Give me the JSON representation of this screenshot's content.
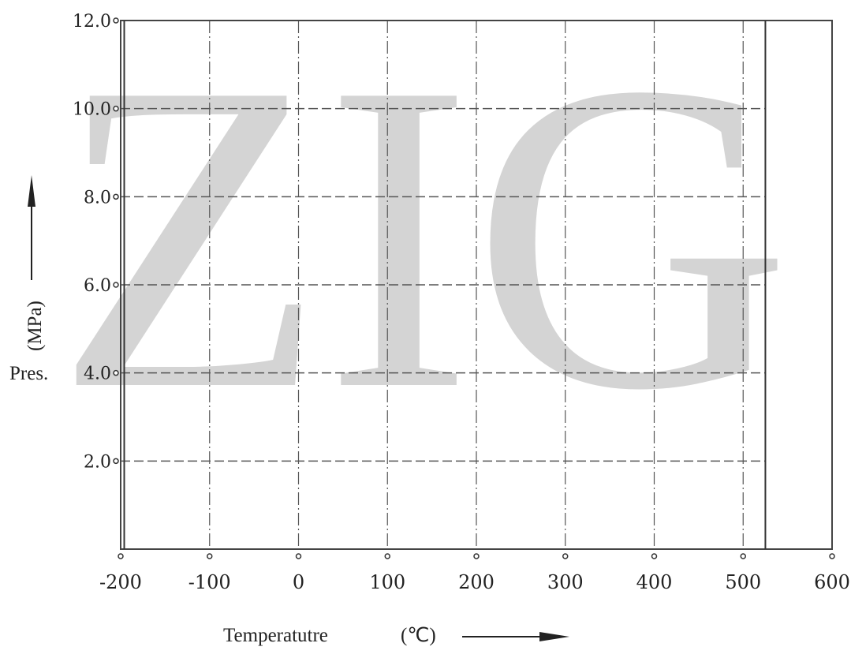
{
  "chart_data": {
    "type": "line",
    "title": "",
    "watermark": "ZIG",
    "xlabel": "Temperatutre",
    "xunit": "(℃)",
    "ylabel": "Pres.",
    "yunit": "(MPa)",
    "xlim": [
      -200,
      600
    ],
    "ylim": [
      0,
      12.0
    ],
    "x_ticks": [
      -200,
      -100,
      0,
      100,
      200,
      300,
      400,
      500,
      600
    ],
    "x_tick_labels": [
      "-200",
      "-100",
      "0",
      "100",
      "200",
      "300",
      "400",
      "500",
      "600"
    ],
    "y_ticks": [
      2.0,
      4.0,
      6.0,
      8.0,
      10.0,
      12.0
    ],
    "y_tick_labels": [
      "2.0",
      "4.0",
      "6.0",
      "8.0",
      "10.0",
      "12.0"
    ],
    "boundary_lines_x": [
      -196,
      525
    ],
    "grid": true,
    "series": []
  }
}
